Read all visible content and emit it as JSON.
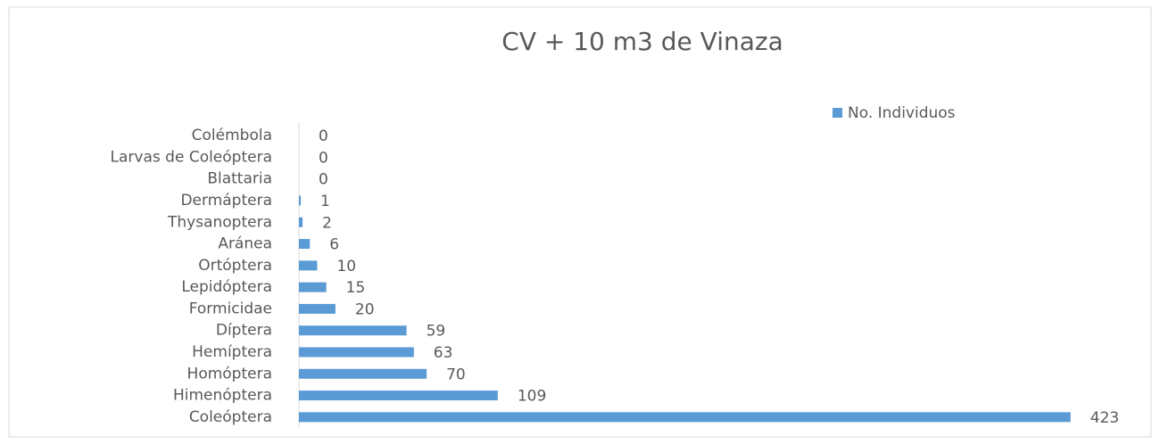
{
  "chart_data": {
    "type": "bar",
    "orientation": "horizontal",
    "title": "CV + 10 m3 de Vinaza",
    "categories": [
      "Coleóptera",
      "Himenóptera",
      "Homóptera",
      "Hemíptera",
      "Díptera",
      "Formicidae",
      "Lepidóptera",
      "Ortóptera",
      "Aránea",
      "Thysanoptera",
      "Dermáptera",
      "Blattaria",
      "Larvas de Coleóptera",
      "Colémbola"
    ],
    "series": [
      {
        "name": "No. Individuos",
        "color": "#5b9bd5",
        "values": [
          423,
          109,
          70,
          63,
          59,
          20,
          15,
          10,
          6,
          2,
          1,
          0,
          0,
          0
        ]
      }
    ],
    "xlim": [
      0,
      450
    ],
    "legend": "top-right"
  }
}
